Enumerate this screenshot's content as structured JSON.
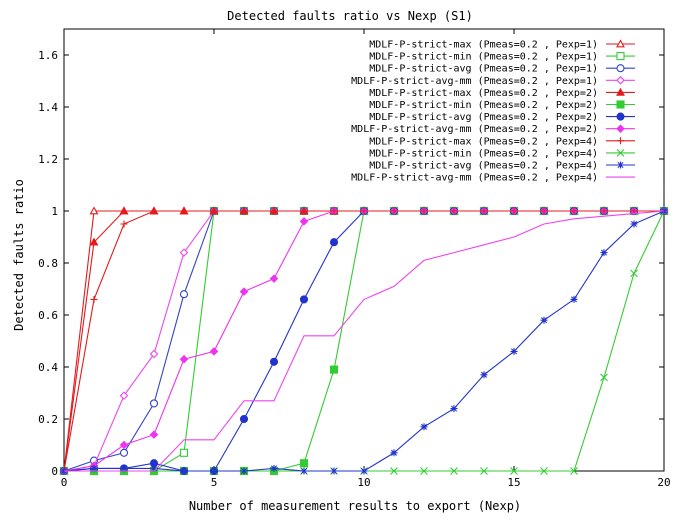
{
  "chart_data": {
    "type": "line",
    "title": "Detected faults ratio vs Nexp (S1)",
    "xlabel": "Number of measurement results to export (Nexp)",
    "ylabel": "Detected faults ratio",
    "xlim": [
      0,
      20
    ],
    "ylim": [
      0,
      1.7
    ],
    "xticks": [
      0,
      5,
      10,
      15,
      20
    ],
    "yticks": [
      0,
      0.2,
      0.4,
      0.6,
      0.8,
      1,
      1.2,
      1.4,
      1.6
    ],
    "xtick_labels": [
      "0",
      "5",
      "10",
      "15",
      "20"
    ],
    "ytick_labels": [
      "0",
      "0.2",
      "0.4",
      "0.6",
      "0.8",
      "1",
      "1.2",
      "1.4",
      "1.6"
    ],
    "grid": false,
    "legend_position": "top-right",
    "series": [
      {
        "name": "MDLF-P-strict-max (Pmeas=0.2 , Pexp=1)",
        "color": "#e41a1c",
        "marker": "triangle-open",
        "x": [
          0,
          1,
          2,
          3,
          4,
          5,
          6,
          7,
          8,
          9,
          10,
          11,
          12,
          13,
          14,
          15,
          16,
          17,
          18,
          19,
          20
        ],
        "y": [
          0,
          1,
          1,
          1,
          1,
          1,
          1,
          1,
          1,
          1,
          1,
          1,
          1,
          1,
          1,
          1,
          1,
          1,
          1,
          1,
          1
        ]
      },
      {
        "name": "MDLF-P-strict-min (Pmeas=0.2 , Pexp=1)",
        "color": "#33cc33",
        "marker": "square-open",
        "x": [
          0,
          1,
          2,
          3,
          4,
          5,
          6,
          7,
          8,
          9,
          10,
          11,
          12,
          13,
          14,
          15,
          16,
          17,
          18,
          19,
          20
        ],
        "y": [
          0,
          0,
          0,
          0,
          0.07,
          1,
          1,
          1,
          1,
          1,
          1,
          1,
          1,
          1,
          1,
          1,
          1,
          1,
          1,
          1,
          1
        ]
      },
      {
        "name": "MDLF-P-strict-avg (Pmeas=0.2 , Pexp=1)",
        "color": "#3344cc",
        "marker": "circle-open",
        "x": [
          0,
          1,
          2,
          3,
          4,
          5,
          6,
          7,
          8,
          9,
          10,
          11,
          12,
          13,
          14,
          15,
          16,
          17,
          18,
          19,
          20
        ],
        "y": [
          0,
          0.04,
          0.07,
          0.26,
          0.68,
          1,
          1,
          1,
          1,
          1,
          1,
          1,
          1,
          1,
          1,
          1,
          1,
          1,
          1,
          1,
          1
        ]
      },
      {
        "name": "MDLF-P-strict-avg-mm (Pmeas=0.2 , Pexp=1)",
        "color": "#ee44ee",
        "marker": "diamond-open",
        "x": [
          0,
          1,
          2,
          3,
          4,
          5,
          6,
          7,
          8,
          9,
          10,
          11,
          12,
          13,
          14,
          15,
          16,
          17,
          18,
          19,
          20
        ],
        "y": [
          0,
          0.02,
          0.29,
          0.45,
          0.84,
          1,
          1,
          1,
          1,
          1,
          1,
          1,
          1,
          1,
          1,
          1,
          1,
          1,
          1,
          1,
          1
        ]
      },
      {
        "name": "MDLF-P-strict-max (Pmeas=0.2 , Pexp=2)",
        "color": "#e41a1c",
        "marker": "triangle-filled",
        "x": [
          0,
          1,
          2,
          3,
          4,
          5,
          6,
          7,
          8,
          9,
          10,
          11,
          12,
          13,
          14,
          15,
          16,
          17,
          18,
          19,
          20
        ],
        "y": [
          0,
          0.88,
          1,
          1,
          1,
          1,
          1,
          1,
          1,
          1,
          1,
          1,
          1,
          1,
          1,
          1,
          1,
          1,
          1,
          1,
          1
        ]
      },
      {
        "name": "MDLF-P-strict-min (Pmeas=0.2 , Pexp=2)",
        "color": "#33cc33",
        "marker": "square-filled",
        "x": [
          0,
          1,
          2,
          3,
          4,
          5,
          6,
          7,
          8,
          9,
          10,
          11,
          12,
          13,
          14,
          15,
          16,
          17,
          18,
          19,
          20
        ],
        "y": [
          0,
          0,
          0,
          0,
          0,
          0,
          0,
          0,
          0.03,
          0.39,
          1,
          1,
          1,
          1,
          1,
          1,
          1,
          1,
          1,
          1,
          1
        ]
      },
      {
        "name": "MDLF-P-strict-avg (Pmeas=0.2 , Pexp=2)",
        "color": "#2233cc",
        "marker": "circle-filled",
        "x": [
          0,
          1,
          2,
          3,
          4,
          5,
          6,
          7,
          8,
          9,
          10,
          11,
          12,
          13,
          14,
          15,
          16,
          17,
          18,
          19,
          20
        ],
        "y": [
          0,
          0.01,
          0.01,
          0.03,
          0,
          0,
          0.2,
          0.42,
          0.66,
          0.88,
          1,
          1,
          1,
          1,
          1,
          1,
          1,
          1,
          1,
          1,
          1
        ]
      },
      {
        "name": "MDLF-P-strict-avg-mm (Pmeas=0.2 , Pexp=2)",
        "color": "#ee33ee",
        "marker": "diamond-filled",
        "x": [
          0,
          1,
          2,
          3,
          4,
          5,
          6,
          7,
          8,
          9,
          10,
          11,
          12,
          13,
          14,
          15,
          16,
          17,
          18,
          19,
          20
        ],
        "y": [
          0,
          0.02,
          0.1,
          0.14,
          0.43,
          0.46,
          0.69,
          0.74,
          0.96,
          1,
          1,
          1,
          1,
          1,
          1,
          1,
          1,
          1,
          1,
          1,
          1
        ]
      },
      {
        "name": "MDLF-P-strict-max (Pmeas=0.2 , Pexp=4)",
        "color": "#e41a1c",
        "marker": "plus",
        "x": [
          0,
          1,
          2,
          3,
          4,
          5,
          6,
          7,
          8,
          9,
          10,
          11,
          12,
          13,
          14,
          15,
          16,
          17,
          18,
          19,
          20
        ],
        "y": [
          0,
          0.66,
          0.95,
          1,
          1,
          1,
          1,
          1,
          1,
          1,
          1,
          1,
          1,
          1,
          1,
          1,
          1,
          1,
          1,
          1,
          1
        ]
      },
      {
        "name": "MDLF-P-strict-min (Pmeas=0.2 , Pexp=4)",
        "color": "#33cc33",
        "marker": "x",
        "x": [
          0,
          1,
          2,
          3,
          4,
          5,
          6,
          7,
          8,
          9,
          10,
          11,
          12,
          13,
          14,
          15,
          16,
          17,
          18,
          19,
          20
        ],
        "y": [
          0,
          0,
          0,
          0,
          0,
          0,
          0,
          0,
          0,
          0,
          0,
          0,
          0,
          0,
          0,
          0,
          0,
          0,
          0.36,
          0.76,
          1
        ]
      },
      {
        "name": "MDLF-P-strict-avg (Pmeas=0.2 , Pexp=4)",
        "color": "#2233cc",
        "marker": "star",
        "x": [
          0,
          1,
          2,
          3,
          4,
          5,
          6,
          7,
          8,
          9,
          10,
          11,
          12,
          13,
          14,
          15,
          16,
          17,
          18,
          19,
          20
        ],
        "y": [
          0,
          0.01,
          0.01,
          0.01,
          0,
          0,
          0,
          0.01,
          0,
          0,
          0,
          0.07,
          0.17,
          0.24,
          0.37,
          0.46,
          0.58,
          0.66,
          0.84,
          0.95,
          1
        ]
      },
      {
        "name": "MDLF-P-strict-avg-mm (Pmeas=0.2 , Pexp=4)",
        "color": "#ee44ee",
        "marker": "none",
        "x": [
          0,
          1,
          2,
          3,
          4,
          5,
          6,
          7,
          8,
          9,
          10,
          11,
          12,
          13,
          14,
          15,
          16,
          17,
          18,
          19,
          20
        ],
        "y": [
          0,
          0,
          0,
          0,
          0.12,
          0.12,
          0.27,
          0.27,
          0.52,
          0.52,
          0.66,
          0.71,
          0.81,
          0.84,
          0.87,
          0.9,
          0.95,
          0.97,
          0.98,
          0.99,
          1
        ]
      }
    ]
  }
}
